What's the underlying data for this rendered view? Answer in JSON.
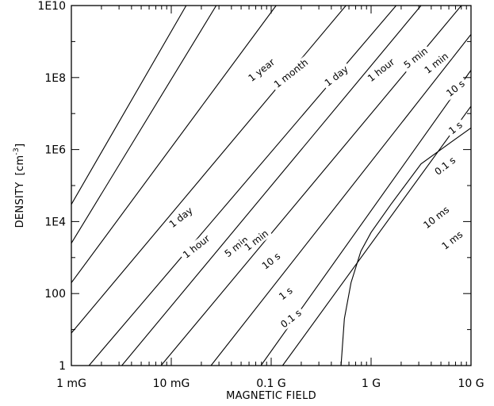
{
  "chart_data": {
    "type": "line",
    "xlabel": "MAGNETIC FIELD",
    "ylabel": "DENSITY",
    "ylabel_unit_base": "[cm",
    "ylabel_unit_exp": "-3",
    "ylabel_unit_close": "]",
    "x_scale": "log",
    "y_scale": "log",
    "xlim": [
      0.001,
      10
    ],
    "ylim": [
      1,
      10000000000.0
    ],
    "x_ticks": [
      {
        "value": 0.001,
        "label": "1 mG"
      },
      {
        "value": 0.01,
        "label": "10 mG"
      },
      {
        "value": 0.1,
        "label": "0.1 G"
      },
      {
        "value": 1,
        "label": "1 G"
      },
      {
        "value": 10,
        "label": "10 G"
      }
    ],
    "y_ticks": [
      {
        "value": 1,
        "label": "1"
      },
      {
        "value": 100,
        "label": "100"
      },
      {
        "value": 10000,
        "label": "1E4"
      },
      {
        "value": 1000000,
        "label": "1E6"
      },
      {
        "value": 100000000,
        "label": "1E8"
      },
      {
        "value": 10000000000,
        "label": "1E10"
      }
    ],
    "grid": false,
    "series": [
      {
        "name": "1 year",
        "points": [
          [
            0.001,
            30000
          ],
          [
            0.0141,
            10000000000.0
          ]
        ]
      },
      {
        "name": "1 month",
        "points": [
          [
            0.001,
            2500
          ],
          [
            0.0282,
            10000000000.0
          ]
        ]
      },
      {
        "name": "1 day",
        "points": [
          [
            0.001,
            200
          ],
          [
            0.112,
            10000000000.0
          ]
        ]
      },
      {
        "name": "1 hour",
        "points": [
          [
            0.001,
            8
          ],
          [
            0.56,
            10000000000.0
          ]
        ]
      },
      {
        "name": "5 min",
        "points": [
          [
            0.0015,
            1
          ],
          [
            1.78,
            10000000000.0
          ]
        ]
      },
      {
        "name": "1 min",
        "points": [
          [
            0.0032,
            1
          ],
          [
            3.16,
            10000000000.0
          ]
        ]
      },
      {
        "name": "10 s",
        "points": [
          [
            0.0079,
            1
          ],
          [
            8.0,
            10000000000.0
          ]
        ]
      },
      {
        "name": "1 s",
        "points": [
          [
            0.025,
            1
          ],
          [
            10,
            1580000000.0
          ]
        ]
      },
      {
        "name": "0.1 s",
        "points": [
          [
            0.079,
            1
          ],
          [
            10,
            160000000.0
          ]
        ]
      },
      {
        "name": "10 ms",
        "points": [
          [
            0.13,
            1
          ],
          [
            10,
            16000000.0
          ]
        ]
      },
      {
        "name": "1 ms",
        "points": [
          [
            0.5,
            1
          ],
          [
            0.54,
            20
          ],
          [
            0.63,
            200
          ],
          [
            0.79,
            1500
          ],
          [
            1.0,
            5000
          ],
          [
            1.58,
            30000
          ],
          [
            3.16,
            400000
          ],
          [
            6.31,
            1600000
          ],
          [
            10,
            4000000
          ]
        ]
      }
    ],
    "annotations": [
      {
        "text": "1 year",
        "x": 0.08,
        "y": 160000000.0
      },
      {
        "text": "1 month",
        "x": 0.158,
        "y": 130000000.0
      },
      {
        "text": "1 day",
        "x": 0.45,
        "y": 110000000.0
      },
      {
        "text": "1 hour",
        "x": 1.26,
        "y": 160000000.0
      },
      {
        "text": "5 min",
        "x": 2.8,
        "y": 350000000.0
      },
      {
        "text": "1 min",
        "x": 4.5,
        "y": 250000000.0
      },
      {
        "text": "10 s",
        "x": 7.0,
        "y": 50000000.0
      },
      {
        "text": "1 s",
        "x": 7.0,
        "y": 4000000.0
      },
      {
        "text": "0.1 s",
        "x": 5.5,
        "y": 350000.0
      },
      {
        "text": "10 ms",
        "x": 4.5,
        "y": 13000.0
      },
      {
        "text": "1 ms",
        "x": 6.5,
        "y": 3000
      },
      {
        "text": "1 day",
        "x": 0.0125,
        "y": 13000.0
      },
      {
        "text": "1 hour",
        "x": 0.0178,
        "y": 2000
      },
      {
        "text": "5 min",
        "x": 0.045,
        "y": 2000
      },
      {
        "text": "1 min",
        "x": 0.071,
        "y": 3000
      },
      {
        "text": "10 s",
        "x": 0.1,
        "y": 800
      },
      {
        "text": "1 s",
        "x": 0.14,
        "y": 100
      },
      {
        "text": "0.1 s",
        "x": 0.158,
        "y": 20
      }
    ]
  }
}
